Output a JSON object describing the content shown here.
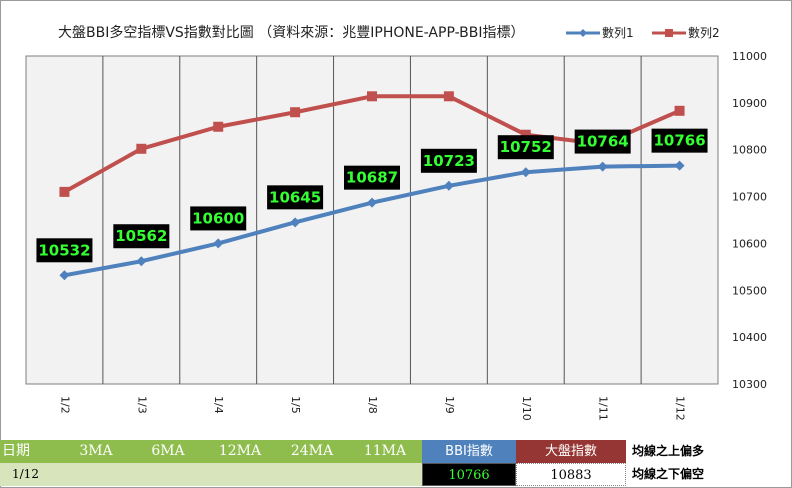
{
  "chart_data": {
    "type": "line",
    "title": "大盤BBI多空指標VS指數對比圖 （資料來源：兆豐IPHONE-APP-BBI指標）",
    "categories": [
      "1/2",
      "1/3",
      "1/4",
      "1/5",
      "1/8",
      "1/9",
      "1/10",
      "1/11",
      "1/12"
    ],
    "series": [
      {
        "name": "數列1",
        "color": "#4f81bd",
        "marker": "diamond",
        "values": [
          10532,
          10562,
          10600,
          10645,
          10687,
          10723,
          10752,
          10764,
          10766
        ],
        "data_labels": [
          "10532",
          "10562",
          "10600",
          "10645",
          "10687",
          "10723",
          "10752",
          "10764",
          "10766"
        ]
      },
      {
        "name": "數列2",
        "color": "#c0504d",
        "marker": "square",
        "values": [
          10710,
          10802,
          10849,
          10880,
          10914,
          10914,
          10832,
          10812,
          10883
        ]
      }
    ],
    "ylim": [
      10300,
      11000
    ],
    "yticks": [
      "10300",
      "10400",
      "10500",
      "10600",
      "10700",
      "10800",
      "10900",
      "11000"
    ],
    "y_axis_side": "right",
    "grid": "vertical",
    "legend": "top-right"
  },
  "table": {
    "headers": [
      "日期",
      "3MA",
      "6MA",
      "12MA",
      "24MA",
      "11MA",
      "BBI指數",
      "大盤指數",
      "均線之上偏多"
    ],
    "row": [
      "1/12",
      "",
      "",
      "",
      "",
      "",
      "10766",
      "10883",
      "均線之下偏空"
    ]
  }
}
